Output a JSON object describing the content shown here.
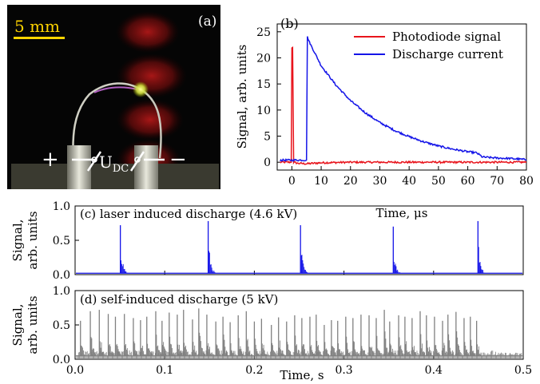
{
  "panel_a": {
    "label": "(a)",
    "scale_bar": "5 mm",
    "plus": "+",
    "minus": "−",
    "voltage_main": "U",
    "voltage_sub": "DC"
  },
  "chart_data": [
    {
      "id": "b",
      "type": "line",
      "panel_label": "(b)",
      "xlabel": "Time, μs",
      "ylabel": "Signal, arb. units",
      "xlim": [
        -5,
        80
      ],
      "ylim": [
        -1.5,
        26.5
      ],
      "xticks": [
        0,
        10,
        20,
        30,
        40,
        50,
        60,
        70,
        80
      ],
      "yticks": [
        0,
        5,
        10,
        15,
        20,
        25
      ],
      "legend_position": "top-right",
      "series": [
        {
          "name": "Photodiode signal",
          "color": "#e8141c",
          "x": [
            -4,
            -0.2,
            0,
            0.25,
            0.6,
            2,
            5,
            10,
            20,
            30,
            40,
            50,
            60,
            70,
            80
          ],
          "y": [
            0,
            0,
            22,
            22,
            0,
            -0.2,
            -0.3,
            -0.1,
            0,
            0,
            0,
            0,
            0,
            0,
            0
          ]
        },
        {
          "name": "Discharge current",
          "color": "#1414e8",
          "x": [
            -4,
            0,
            5,
            5.3,
            6,
            10,
            15,
            20,
            25,
            30,
            35,
            40,
            45,
            50,
            55,
            60,
            63,
            65,
            70,
            75,
            80
          ],
          "y": [
            0.4,
            0.4,
            0.4,
            24,
            23,
            18.5,
            14.8,
            11.8,
            9.5,
            7.6,
            6.1,
            4.9,
            3.9,
            3.1,
            2.5,
            2.0,
            1.8,
            1.0,
            0.8,
            0.7,
            0.5
          ]
        }
      ]
    },
    {
      "id": "c",
      "type": "line",
      "panel_label": "(c) laser induced discharge (4.6 kV)",
      "xlabel": "",
      "ylabel_line1": "Signal,",
      "ylabel_line2": "arb. units",
      "xlim": [
        0,
        0.5
      ],
      "ylim": [
        0,
        1.0
      ],
      "yticks": [
        "0.0",
        "0.5",
        "1.0"
      ],
      "series": [
        {
          "color": "#1414e8",
          "baseline": 0.02,
          "peak_x": [
            0.0505,
            0.1485,
            0.2515,
            0.355,
            0.4495
          ],
          "peak_y": [
            0.72,
            0.78,
            0.72,
            0.7,
            0.78
          ]
        }
      ]
    },
    {
      "id": "d",
      "type": "line",
      "panel_label": "(d) self-induced discharge (5 kV)",
      "xlabel": "Time, s",
      "ylabel_line1": "Signal,",
      "ylabel_line2": "arb. units",
      "xlim": [
        0,
        0.5
      ],
      "ylim": [
        0,
        1.0
      ],
      "xticks": [
        "0.0",
        "0.1",
        "0.2",
        "0.3",
        "0.4",
        "0.5"
      ],
      "yticks": [
        "0.0",
        "0.5",
        "1.0"
      ],
      "series": [
        {
          "color": "#808080",
          "baseline": 0.05,
          "peak_x": [
            0.006,
            0.017,
            0.027,
            0.037,
            0.045,
            0.055,
            0.065,
            0.073,
            0.08,
            0.09,
            0.097,
            0.105,
            0.114,
            0.121,
            0.131,
            0.138,
            0.147,
            0.157,
            0.165,
            0.173,
            0.182,
            0.191,
            0.2,
            0.208,
            0.219,
            0.227,
            0.236,
            0.245,
            0.253,
            0.262,
            0.269,
            0.278,
            0.286,
            0.293,
            0.302,
            0.31,
            0.319,
            0.328,
            0.336,
            0.345,
            0.351,
            0.361,
            0.368,
            0.376,
            0.385,
            0.392,
            0.401,
            0.41,
            0.416,
            0.425,
            0.434,
            0.441,
            0.448
          ],
          "peak_y": [
            0.56,
            0.7,
            0.72,
            0.66,
            0.62,
            0.66,
            0.6,
            0.57,
            0.62,
            0.7,
            0.56,
            0.68,
            0.65,
            0.72,
            0.58,
            0.74,
            0.65,
            0.55,
            0.62,
            0.54,
            0.64,
            0.7,
            0.55,
            0.59,
            0.5,
            0.61,
            0.55,
            0.64,
            0.6,
            0.62,
            0.65,
            0.5,
            0.57,
            0.56,
            0.62,
            0.6,
            0.65,
            0.64,
            0.6,
            0.72,
            0.55,
            0.64,
            0.62,
            0.6,
            0.7,
            0.64,
            0.62,
            0.56,
            0.65,
            0.69,
            0.6,
            0.62,
            0.56
          ]
        }
      ]
    }
  ]
}
